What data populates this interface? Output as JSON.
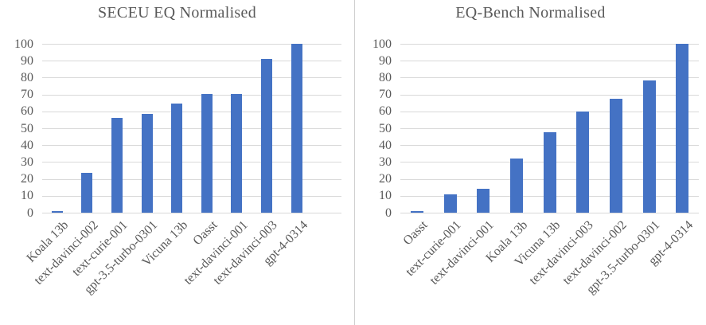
{
  "divider": {
    "color": "#d0d0d0"
  },
  "chart_data": [
    {
      "type": "bar",
      "title": "SECEU EQ Normalised",
      "categories": [
        "Koala 13b",
        "text-davinci-002",
        "text-curie-001",
        "gpt-3.5-turbo-0301",
        "Vicuna 13b",
        "Oasst",
        "text-davinci-001",
        "text-davinci-003",
        "gpt-4-0314"
      ],
      "values": [
        0.8,
        23.5,
        56,
        58.5,
        64.5,
        70.5,
        70.5,
        91,
        100
      ],
      "xlabel": "",
      "ylabel": "",
      "ylim": [
        0,
        100
      ],
      "yticks": [
        0,
        10,
        20,
        30,
        40,
        50,
        60,
        70,
        80,
        90,
        100
      ],
      "grid": true,
      "legend": "none",
      "trailing_empty_slots": 1,
      "bar_color": "#4472c4",
      "gridline_color": "#d9d9d9",
      "text_color": "#595959"
    },
    {
      "type": "bar",
      "title": "EQ-Bench Normalised",
      "categories": [
        "Oasst",
        "text-curie-001",
        "text-davinci-001",
        "Koala 13b",
        "Vicuna 13b",
        "text-davinci-003",
        "text-davinci-002",
        "gpt-3.5-turbo-0301",
        "gpt-4-0314"
      ],
      "values": [
        0.8,
        11,
        14,
        32,
        47.5,
        60,
        67.5,
        78.5,
        100
      ],
      "xlabel": "",
      "ylabel": "",
      "ylim": [
        0,
        100
      ],
      "yticks": [
        0,
        10,
        20,
        30,
        40,
        50,
        60,
        70,
        80,
        90,
        100
      ],
      "grid": true,
      "legend": "none",
      "trailing_empty_slots": 0,
      "bar_color": "#4472c4",
      "gridline_color": "#d9d9d9",
      "text_color": "#595959"
    }
  ]
}
